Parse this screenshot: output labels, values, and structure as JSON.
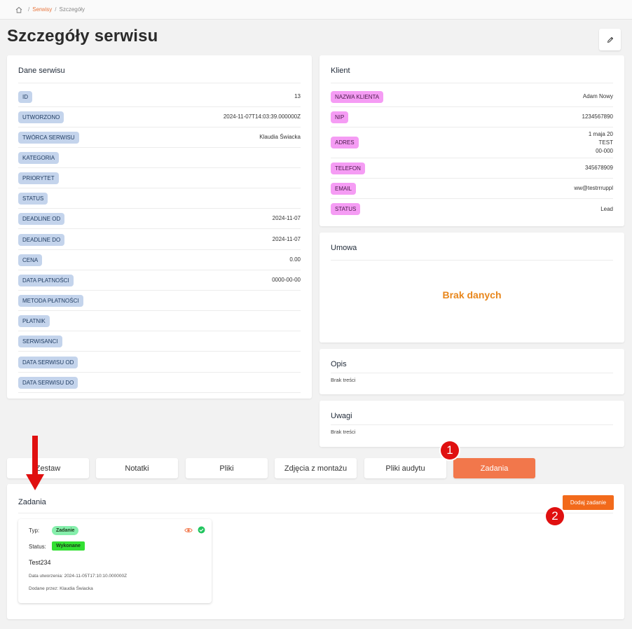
{
  "breadcrumb": {
    "separator": "/",
    "items": [
      "Serwisy",
      "Szczegóły"
    ]
  },
  "page": {
    "title": "Szczegóły serwisu"
  },
  "service_card": {
    "title": "Dane serwisu",
    "rows": [
      {
        "label": "ID",
        "value": "13"
      },
      {
        "label": "UTWORZONO",
        "value": "2024-11-07T14:03:39.000000Z"
      },
      {
        "label": "TWÓRCA SERWISU",
        "value": "Klaudia Świacka"
      },
      {
        "label": "KATEGORIA",
        "value": ""
      },
      {
        "label": "PRIORYTET",
        "value": ""
      },
      {
        "label": "STATUS",
        "value": ""
      },
      {
        "label": "DEADLINE OD",
        "value": "2024-11-07"
      },
      {
        "label": "DEADLINE DO",
        "value": "2024-11-07"
      },
      {
        "label": "CENA",
        "value": "0.00"
      },
      {
        "label": "DATA PŁATNOŚCI",
        "value": "0000-00-00"
      },
      {
        "label": "METODA PŁATNOŚCI",
        "value": ""
      },
      {
        "label": "PŁATNIK",
        "value": ""
      },
      {
        "label": "SERWISANCI",
        "value": ""
      },
      {
        "label": "DATA SERWISU OD",
        "value": ""
      },
      {
        "label": "DATA SERWISU DO",
        "value": ""
      }
    ]
  },
  "client_card": {
    "title": "Klient",
    "rows": [
      {
        "label": "NAZWA KLIENTA",
        "value": "Adam Nowy"
      },
      {
        "label": "NIP",
        "value": "1234567890"
      },
      {
        "label": "ADRES",
        "value_lines": [
          "1 maja 20",
          "TEST",
          "00-000"
        ]
      },
      {
        "label": "TELEFON",
        "value": "345678909"
      },
      {
        "label": "EMAIL",
        "value": "ww@testrrruppl"
      },
      {
        "label": "STATUS",
        "value": "Lead"
      }
    ]
  },
  "contract_card": {
    "title": "Umowa",
    "empty": "Brak danych"
  },
  "description_card": {
    "title": "Opis",
    "text": "Brak treści"
  },
  "notes_card": {
    "title": "Uwagi",
    "text": "Brak treści"
  },
  "tabs": [
    {
      "label": "Zestaw",
      "active": false
    },
    {
      "label": "Notatki",
      "active": false
    },
    {
      "label": "Pliki",
      "active": false
    },
    {
      "label": "Zdjęcia z montażu",
      "active": false
    },
    {
      "label": "Pliki audytu",
      "active": false
    },
    {
      "label": "Zadania",
      "active": true
    }
  ],
  "tasks_section": {
    "title": "Zadania",
    "add_button": "Dodaj zadanie",
    "tasks": [
      {
        "type_label": "Typ:",
        "type_value": "Zadanie",
        "status_label": "Status:",
        "status_value": "Wykonane",
        "name": "Test234",
        "created": "Data utworzenia: 2024-11-05T17:10:10.000000Z",
        "added_by": "Dodane przez: Klaudia Świacka",
        "icons": [
          "eye-icon",
          "check-circle-icon"
        ]
      }
    ]
  },
  "annotations": {
    "marker_1": "1",
    "marker_2": "2"
  },
  "colors": {
    "accent": "#f2774b",
    "blue_pill": "#c4d4ec",
    "pink_pill": "#f59cf4",
    "marker_red": "#e01010",
    "empty_orange": "#e8861b"
  }
}
